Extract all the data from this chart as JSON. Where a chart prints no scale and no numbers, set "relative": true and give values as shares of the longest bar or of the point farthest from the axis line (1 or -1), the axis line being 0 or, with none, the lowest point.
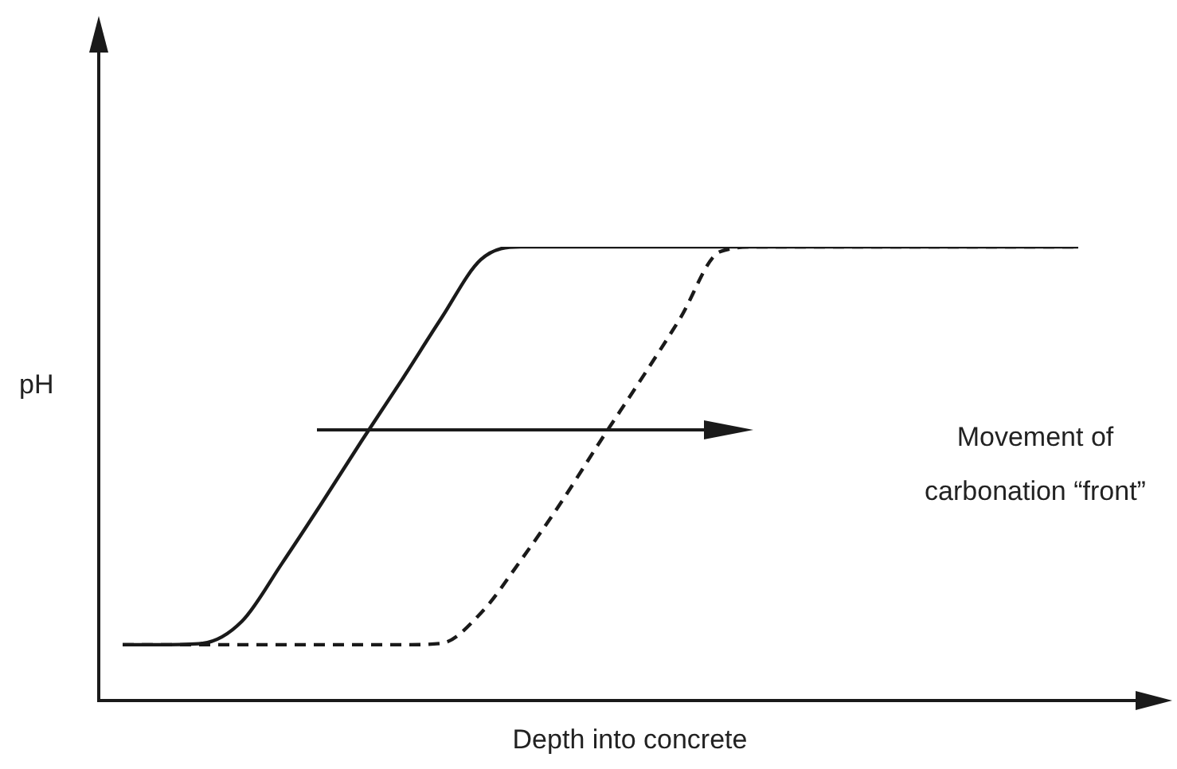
{
  "chart_data": {
    "type": "line",
    "relative": true,
    "xlabel": "Depth into concrete",
    "ylabel": "pH",
    "marker": "none",
    "legend": false,
    "categories": [
      null,
      null,
      null,
      null,
      null,
      null,
      null,
      null,
      null,
      null,
      null,
      null,
      null,
      null,
      null,
      null,
      null,
      null,
      null,
      null,
      null,
      null,
      null,
      null,
      null
    ],
    "series": [
      {
        "color": "#1a1a1a",
        "line_style": "solid",
        "values": [
          0.123,
          0.123,
          0.126,
          0.175,
          0.302,
          0.435,
          0.572,
          0.705,
          0.842,
          0.972,
          1,
          1,
          1,
          1,
          1,
          1,
          1,
          1,
          1,
          1,
          1,
          1,
          1,
          1,
          1
        ]
      },
      {
        "color": "#1a1a1a",
        "line_style": "dashed",
        "values": [
          0.123,
          0.123,
          0.123,
          0.123,
          0.123,
          0.123,
          0.123,
          0.123,
          0.126,
          0.193,
          0.309,
          0.435,
          0.572,
          0.705,
          0.842,
          0.989,
          1,
          1,
          1,
          1,
          1,
          1,
          1,
          1,
          1
        ]
      }
    ],
    "annotations": [
      "Movement of carbonation “front”"
    ]
  }
}
